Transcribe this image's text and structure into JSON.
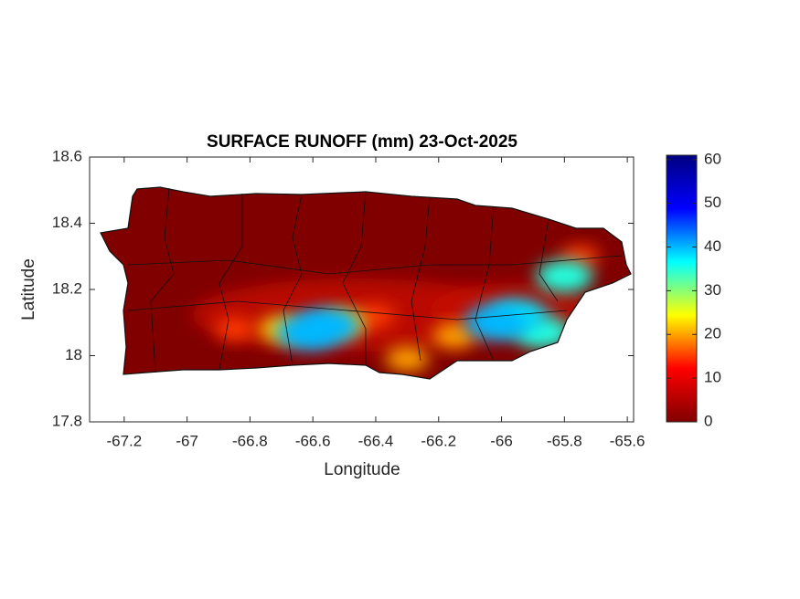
{
  "chart_data": {
    "type": "heatmap",
    "title": "SURFACE RUNOFF (mm) 23-Oct-2025",
    "x_label": "Longitude",
    "y_label": "Latitude",
    "xlim": [
      -67.31,
      -65.58
    ],
    "ylim": [
      17.8,
      18.6
    ],
    "xticks": [
      -67.2,
      -67,
      -66.8,
      -66.6,
      -66.4,
      -66.2,
      -66,
      -65.8,
      -65.6
    ],
    "yticks": [
      17.8,
      18,
      18.2,
      18.4,
      18.6
    ],
    "clim": [
      0,
      61
    ],
    "cticks": [
      0,
      10,
      20,
      30,
      40,
      50,
      60
    ],
    "colormap": [
      "#800000",
      "#ff0000",
      "#ffff00",
      "#00ffff",
      "#0000ff",
      "#000080"
    ],
    "points": [
      {
        "lon": -66.85,
        "lat": 18.08,
        "value": 15
      },
      {
        "lon": -66.4,
        "lat": 18.12,
        "value": 15
      },
      {
        "lon": -65.75,
        "lat": 18.3,
        "value": 15
      },
      {
        "lon": -66.3,
        "lat": 17.99,
        "value": 20
      },
      {
        "lon": -66.15,
        "lat": 18.06,
        "value": 20
      },
      {
        "lon": -66.7,
        "lat": 18.08,
        "value": 22
      },
      {
        "lon": -66.5,
        "lat": 18.1,
        "value": 22
      },
      {
        "lon": -65.87,
        "lat": 18.07,
        "value": 35
      },
      {
        "lon": -65.8,
        "lat": 18.24,
        "value": 35
      },
      {
        "lon": -65.95,
        "lat": 18.12,
        "value": 38
      },
      {
        "lon": -66.62,
        "lat": 18.07,
        "value": 40
      },
      {
        "lon": -66.55,
        "lat": 18.09,
        "value": 40
      },
      {
        "lon": -66.02,
        "lat": 18.1,
        "value": 40
      }
    ]
  }
}
